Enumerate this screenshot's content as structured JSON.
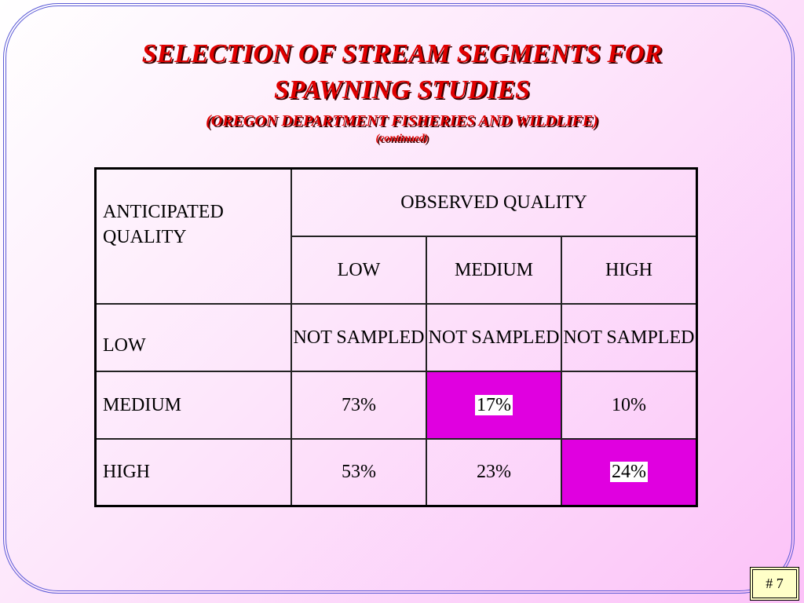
{
  "header": {
    "title_line1": "SELECTION OF STREAM SEGMENTS FOR",
    "title_line2": "SPAWNING STUDIES",
    "subtitle": "(OREGON DEPARTMENT FISHERIES AND WILDLIFE)",
    "note": "(continued)"
  },
  "table": {
    "corner": "ANTICIPATED QUALITY",
    "group_header": "OBSERVED QUALITY",
    "columns": [
      "LOW",
      "MEDIUM",
      "HIGH"
    ],
    "rows": [
      [
        "LOW",
        "NOT SAMPLED",
        "NOT SAMPLED",
        "NOT SAMPLED"
      ],
      [
        "MEDIUM",
        "73%",
        "17%",
        "10%"
      ],
      [
        "HIGH",
        "53%",
        "23%",
        "24%"
      ]
    ]
  },
  "footer": {
    "page_number": "# 7"
  }
}
